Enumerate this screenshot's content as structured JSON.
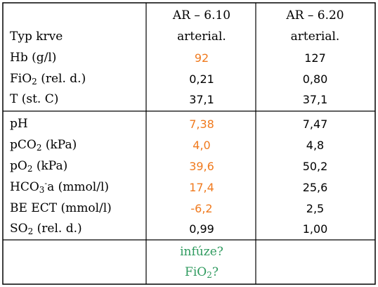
{
  "colors": {
    "highlight": "#f07a1e",
    "note": "#2e9a5e",
    "border": "#000000"
  },
  "headers": {
    "label": "Typ krve",
    "col1_title": "AR – 6.10",
    "col1_type": "arterial.",
    "col2_title": "AR – 6.20",
    "col2_type": "arterial."
  },
  "rows": [
    {
      "label_main": "Hb (g/l)",
      "label_sub": "",
      "label_sup": "",
      "label_rest": "",
      "v1": "92",
      "v2": "127"
    },
    {
      "label_main": "FiO",
      "label_sub": "2",
      "label_sup": "",
      "label_rest": " (rel. d.)",
      "v1": "0,21",
      "v2": "0,80"
    },
    {
      "label_main": "T (st. C)",
      "label_sub": "",
      "label_sup": "",
      "label_rest": "",
      "v1": "37,1",
      "v2": "37,1"
    },
    {
      "label_main": "pH",
      "label_sub": "",
      "label_sup": "",
      "label_rest": "",
      "v1": "7,38",
      "v2": "7,47"
    },
    {
      "label_main": "pCO",
      "label_sub": "2",
      "label_sup": "",
      "label_rest": " (kPa)",
      "v1": "4,0",
      "v2": "4,8"
    },
    {
      "label_main": "pO",
      "label_sub": "2",
      "label_sup": "",
      "label_rest": " (kPa)",
      "v1": "39,6",
      "v2": "50,2"
    },
    {
      "label_main": "HCO",
      "label_sub": "3",
      "label_sup": "-",
      "label_rest": "a (mmol/l)",
      "v1": "17,4",
      "v2": "25,6"
    },
    {
      "label_main": "BE ECT (mmol/l)",
      "label_sub": "",
      "label_sup": "",
      "label_rest": "",
      "v1": "-6,2",
      "v2": "2,5"
    },
    {
      "label_main": "SO",
      "label_sub": "2",
      "label_sup": "",
      "label_rest": " (rel. d.)",
      "v1": "0,99",
      "v2": "1,00"
    }
  ],
  "notes": {
    "line1": "infúze?",
    "line2_main": "FiO",
    "line2_sub": "2",
    "line2_rest": "?"
  }
}
